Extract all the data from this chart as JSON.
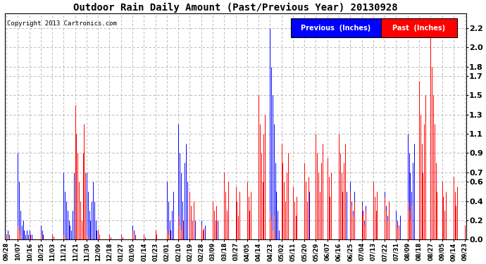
{
  "title": "Outdoor Rain Daily Amount (Past/Previous Year) 20130928",
  "copyright": "Copyright 2013 Cartronics.com",
  "legend_labels": [
    "Previous  (Inches)",
    "Past  (Inches)"
  ],
  "yticks": [
    0.0,
    0.2,
    0.4,
    0.6,
    0.7,
    0.9,
    1.1,
    1.3,
    1.5,
    1.7,
    1.8,
    2.0,
    2.2
  ],
  "ylim": [
    0.0,
    2.35
  ],
  "background_color": "#ffffff",
  "grid_color": "#b0b0b0",
  "x_labels": [
    "09/28",
    "10/07",
    "10/16",
    "10/25",
    "11/03",
    "11/12",
    "11/21",
    "11/30",
    "12/09",
    "12/18",
    "01/27",
    "01/05",
    "01/14",
    "01/23",
    "02/01",
    "02/10",
    "02/19",
    "02/28",
    "03/09",
    "03/18",
    "03/27",
    "04/05",
    "04/14",
    "04/23",
    "05/02",
    "05/11",
    "05/20",
    "05/29",
    "06/07",
    "06/16",
    "06/25",
    "07/04",
    "07/13",
    "07/22",
    "07/31",
    "08/09",
    "08/18",
    "08/27",
    "09/05",
    "09/14",
    "09/23"
  ],
  "blue_data_by_label": {
    "09/28": [
      0.05,
      0.1,
      0.05
    ],
    "10/07": [
      0.9,
      0.6,
      0.3,
      0.15,
      0.2,
      0.1,
      0.05,
      0.1,
      0.05
    ],
    "10/16": [
      0.1,
      0.05,
      0.05
    ],
    "10/25": [
      0.15,
      0.1,
      0.05
    ],
    "11/03": [
      0.05,
      0.03
    ],
    "11/12": [
      0.7,
      0.5,
      0.4,
      0.3,
      0.2,
      0.15,
      0.1,
      0.3,
      0.7
    ],
    "11/21": [
      0.05,
      0.03
    ],
    "11/30": [
      0.7,
      0.5,
      0.3,
      0.2,
      0.4,
      0.6,
      0.4,
      0.2,
      0.1
    ],
    "12/09": [
      0.1,
      0.05
    ],
    "12/18": [
      0.05,
      0.02
    ],
    "01/27": [
      0.05,
      0.02
    ],
    "01/05": [
      0.15,
      0.1,
      0.05
    ],
    "01/14": [
      0.05,
      0.02
    ],
    "01/23": [
      0.1,
      0.05
    ],
    "02/01": [
      0.6,
      0.4,
      0.2,
      0.1,
      0.3,
      0.5
    ],
    "02/10": [
      1.2,
      0.9,
      0.7,
      0.4,
      0.2,
      0.8,
      1.0,
      0.6
    ],
    "02/19": [
      0.3,
      0.2,
      0.1,
      0.05,
      0.2
    ],
    "02/28": [
      0.2,
      0.1,
      0.05,
      0.15
    ],
    "03/09": [
      0.3,
      0.2,
      0.15,
      0.1,
      0.2
    ],
    "03/18": [
      0.3,
      0.2,
      0.15,
      0.25
    ],
    "03/27": [
      0.35,
      0.25,
      0.15,
      0.3
    ],
    "04/05": [
      0.25,
      0.15,
      0.1,
      0.2
    ],
    "04/14": [
      0.7,
      0.5,
      0.3,
      0.4,
      0.6
    ],
    "04/23": [
      2.2,
      1.8,
      1.5,
      1.2,
      0.8,
      0.5,
      0.3,
      0.1
    ],
    "05/02": [
      0.4,
      0.3,
      0.2,
      0.35
    ],
    "05/11": [
      0.25,
      0.15,
      0.2,
      0.1
    ],
    "05/20": [
      0.6,
      0.4,
      0.3,
      0.2,
      0.5
    ],
    "05/29": [
      0.8,
      0.6,
      0.4,
      0.3,
      0.5,
      0.7
    ],
    "06/07": [
      0.5,
      0.3,
      0.2,
      0.4
    ],
    "06/16": [
      1.0,
      0.8,
      0.6,
      0.4,
      0.7,
      0.9,
      0.5
    ],
    "06/25": [
      0.6,
      0.4,
      0.3,
      0.5
    ],
    "07/04": [
      0.4,
      0.3,
      0.2,
      0.35
    ],
    "07/13": [
      0.35,
      0.25,
      0.15,
      0.3
    ],
    "07/22": [
      0.5,
      0.35,
      0.25,
      0.4
    ],
    "07/31": [
      0.3,
      0.2,
      0.15,
      0.25
    ],
    "08/09": [
      1.1,
      0.9,
      0.7,
      0.5,
      0.8,
      1.0
    ],
    "08/18": [
      0.4,
      0.3,
      0.2,
      0.35
    ],
    "08/27": [
      0.3,
      0.2,
      0.15,
      0.25
    ],
    "09/05": [
      0.5,
      0.35,
      0.25,
      0.4
    ],
    "09/14": [
      0.6,
      0.45,
      0.3,
      0.5
    ],
    "09/23": [
      0.1,
      0.05
    ]
  },
  "red_data_by_label": {
    "09/28": [
      0.05,
      0.03
    ],
    "10/07": [
      0.15,
      0.1,
      0.05
    ],
    "10/16": [
      0.05,
      0.02
    ],
    "10/25": [
      0.05,
      0.02
    ],
    "11/03": [
      0.05,
      0.02
    ],
    "11/12": [
      0.05,
      0.02
    ],
    "11/21": [
      1.4,
      1.1,
      0.9,
      0.6,
      0.4,
      0.2,
      0.9,
      1.2,
      0.7
    ],
    "11/30": [
      0.05,
      0.02
    ],
    "12/09": [
      0.1,
      0.05
    ],
    "12/18": [
      0.05,
      0.02
    ],
    "01/27": [
      0.05,
      0.02
    ],
    "01/05": [
      0.1,
      0.05
    ],
    "01/14": [
      0.05,
      0.02
    ],
    "01/23": [
      0.1,
      0.05
    ],
    "02/01": [
      0.1,
      0.05,
      0.08
    ],
    "02/10": [
      0.25,
      0.15,
      0.1,
      0.2
    ],
    "02/19": [
      0.5,
      0.35,
      0.2,
      0.4
    ],
    "02/28": [
      0.15,
      0.1,
      0.12
    ],
    "03/09": [
      0.4,
      0.3,
      0.2,
      0.35
    ],
    "03/18": [
      0.7,
      0.5,
      0.3,
      0.6
    ],
    "03/27": [
      0.55,
      0.4,
      0.25,
      0.5
    ],
    "04/05": [
      0.6,
      0.45,
      0.3,
      0.5
    ],
    "04/14": [
      1.5,
      1.2,
      0.9,
      0.6,
      1.1,
      1.3
    ],
    "04/23": [
      0.3,
      0.2,
      0.1,
      0.25
    ],
    "05/02": [
      1.0,
      0.8,
      0.6,
      0.4,
      0.7,
      0.9
    ],
    "05/11": [
      0.55,
      0.4,
      0.25,
      0.45
    ],
    "05/20": [
      0.8,
      0.6,
      0.4,
      0.65
    ],
    "05/29": [
      1.1,
      0.9,
      0.7,
      0.5,
      0.8,
      1.0
    ],
    "06/07": [
      0.85,
      0.65,
      0.45,
      0.7
    ],
    "06/16": [
      1.1,
      0.9,
      0.7,
      0.5,
      0.8,
      1.0
    ],
    "06/25": [
      0.5,
      0.35,
      0.25,
      0.4
    ],
    "07/04": [
      0.35,
      0.25,
      0.15,
      0.3
    ],
    "07/13": [
      0.6,
      0.45,
      0.3,
      0.5
    ],
    "07/22": [
      0.45,
      0.3,
      0.2,
      0.4
    ],
    "07/31": [
      0.2,
      0.12,
      0.15
    ],
    "08/09": [
      0.4,
      0.3,
      0.2,
      0.35
    ],
    "08/18": [
      1.65,
      1.3,
      1.0,
      0.7,
      1.2,
      1.5
    ],
    "08/27": [
      2.15,
      1.8,
      1.5,
      1.2,
      0.8,
      0.5
    ],
    "09/05": [
      0.6,
      0.45,
      0.3,
      0.5
    ],
    "09/14": [
      0.65,
      0.5,
      0.35,
      0.55
    ],
    "09/23": [
      0.15,
      0.1
    ]
  }
}
